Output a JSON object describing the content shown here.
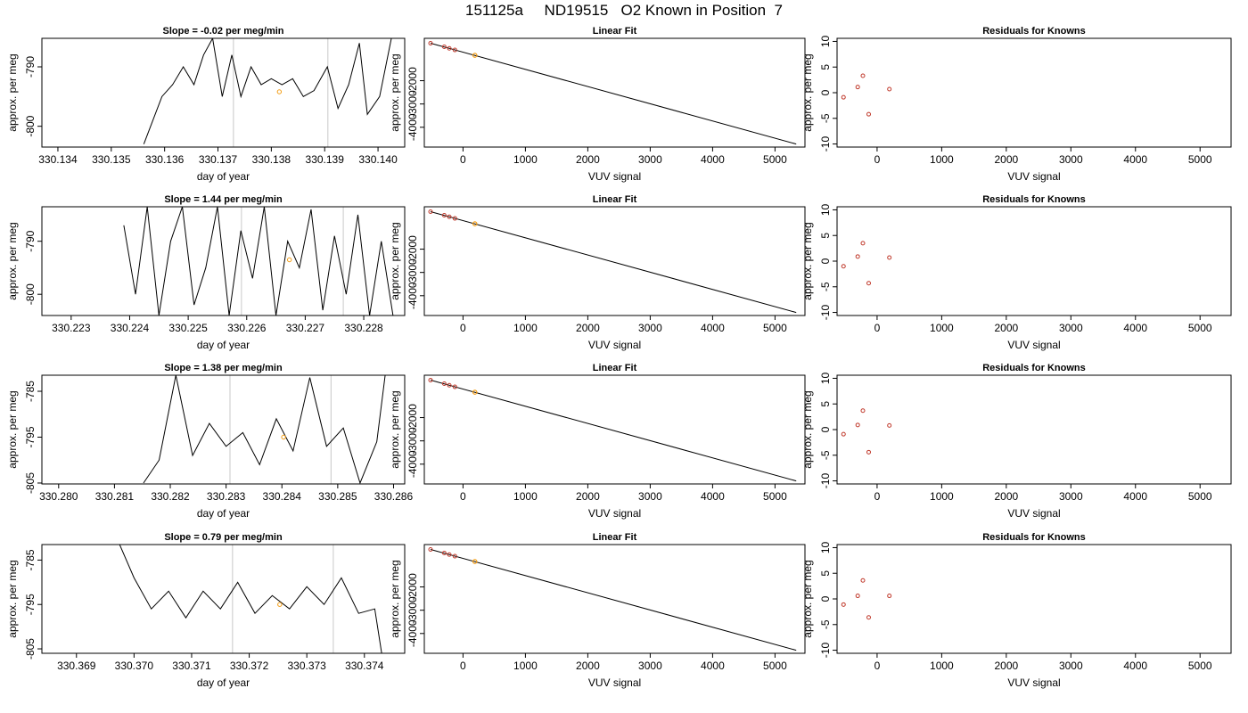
{
  "title": "151125a     ND19515   O2 Known in Position  7",
  "colors": {
    "trace": "#000000",
    "point_known": "#c0392b",
    "point_current": "#f39c12",
    "vline": "#c8c8c8"
  },
  "chart_data": [
    {
      "type": "line",
      "row": 0,
      "col": 0,
      "title": "Slope =  -0.02  per meg/min",
      "xlabel": "day of year",
      "ylabel": "approx. per meg",
      "xlim": [
        330.1337,
        330.1405
      ],
      "ylim": [
        -803.5,
        -785.2
      ],
      "xticks": [
        "330.134",
        "330.135",
        "330.136",
        "330.137",
        "330.138",
        "330.139",
        "330.140"
      ],
      "xtick_values": [
        330.134,
        330.135,
        330.136,
        330.137,
        330.138,
        330.139,
        330.14
      ],
      "yticks": [
        "-790",
        "-800"
      ],
      "ytick_values": [
        -790,
        -800
      ],
      "vlines": [
        330.13729,
        330.13906
      ],
      "highlight_point": {
        "x": 330.13815,
        "y": -794.2
      },
      "series": [
        {
          "x": [
            330.13561,
            330.13595,
            330.13615,
            330.13635,
            330.13655,
            330.13673,
            330.1369,
            330.13708,
            330.13726,
            330.13743,
            330.13762,
            330.13781,
            330.138,
            330.1382,
            330.1384,
            330.1386,
            330.1388,
            330.13905,
            330.13925,
            330.13945,
            330.13965,
            330.1398,
            330.14003,
            330.14025
          ],
          "y": [
            -803,
            -795,
            -793,
            -790,
            -793,
            -788,
            -785.2,
            -795,
            -788,
            -795,
            -790,
            -793,
            -792,
            -793,
            -792,
            -795,
            -794,
            -790,
            -797,
            -793,
            -786,
            -798,
            -795,
            -785.2
          ]
        }
      ]
    },
    {
      "type": "scatter",
      "row": 0,
      "col": 1,
      "title": "Linear Fit",
      "xlabel": "VUV signal",
      "ylabel": "approx. per meg",
      "xlim": [
        -620,
        5480
      ],
      "ylim": [
        -4850,
        -180
      ],
      "xticks": [
        "0",
        "1000",
        "2000",
        "3000",
        "4000",
        "5000"
      ],
      "xtick_values": [
        0,
        1000,
        2000,
        3000,
        4000,
        5000
      ],
      "yticks": [
        "-2000",
        "-3000",
        "-4000"
      ],
      "ytick_values": [
        -2000,
        -3000,
        -4000
      ],
      "fit_line": {
        "x": [
          -520,
          5340
        ],
        "y": [
          -390,
          -4720
        ]
      },
      "points_known": {
        "x": [
          -520,
          -300,
          -220,
          -130
        ],
        "y": [
          -390,
          -545,
          -610,
          -680
        ]
      },
      "point_current": {
        "x": 190,
        "y": -910
      }
    },
    {
      "type": "scatter",
      "row": 0,
      "col": 2,
      "title": "Residuals for Knowns",
      "xlabel": "VUV signal",
      "ylabel": "approx. per meg",
      "xlim": [
        -620,
        5480
      ],
      "ylim": [
        -10.6,
        10.6
      ],
      "xticks": [
        "0",
        "1000",
        "2000",
        "3000",
        "4000",
        "5000"
      ],
      "xtick_values": [
        0,
        1000,
        2000,
        3000,
        4000,
        5000
      ],
      "yticks": [
        "10",
        "5",
        "0",
        "-5",
        "-10"
      ],
      "ytick_values": [
        10,
        5,
        0,
        -5,
        -10
      ],
      "points_known": {
        "x": [
          -520,
          -300,
          -220,
          -130,
          190
        ],
        "y": [
          -0.9,
          1.1,
          3.3,
          -4.2,
          0.7
        ]
      }
    },
    {
      "type": "line",
      "row": 1,
      "col": 0,
      "title": "Slope =  1.44  per meg/min",
      "xlabel": "day of year",
      "ylabel": "approx. per meg",
      "xlim": [
        330.2225,
        330.2287
      ],
      "ylim": [
        -804,
        -783.5
      ],
      "xticks": [
        "330.223",
        "330.224",
        "330.225",
        "330.226",
        "330.227",
        "330.228"
      ],
      "xtick_values": [
        330.223,
        330.224,
        330.225,
        330.226,
        330.227,
        330.228
      ],
      "yticks": [
        "-790",
        "-800"
      ],
      "ytick_values": [
        -790,
        -800
      ],
      "vlines": [
        330.22591,
        330.22765
      ],
      "highlight_point": {
        "x": 330.22673,
        "y": -793.5
      },
      "series": [
        {
          "x": [
            330.2239,
            330.2241,
            330.2243,
            330.2245,
            330.2247,
            330.2249,
            330.2251,
            330.2253,
            330.2255,
            330.2257,
            330.2259,
            330.2261,
            330.2263,
            330.2265,
            330.2267,
            330.2269,
            330.2271,
            330.2273,
            330.2275,
            330.2277,
            330.2279,
            330.2281,
            330.2283,
            330.2285
          ],
          "y": [
            -787,
            -800,
            -783.5,
            -804,
            -790,
            -783.5,
            -802,
            -795,
            -783.5,
            -804,
            -788,
            -797,
            -783.5,
            -804,
            -790,
            -795,
            -784,
            -803,
            -789,
            -800,
            -785,
            -804,
            -790,
            -804
          ]
        }
      ]
    },
    {
      "type": "scatter",
      "row": 1,
      "col": 1,
      "title": "Linear Fit",
      "xlabel": "VUV signal",
      "ylabel": "approx. per meg",
      "xlim": [
        -620,
        5480
      ],
      "ylim": [
        -4850,
        -180
      ],
      "xticks": [
        "0",
        "1000",
        "2000",
        "3000",
        "4000",
        "5000"
      ],
      "xtick_values": [
        0,
        1000,
        2000,
        3000,
        4000,
        5000
      ],
      "yticks": [
        "-2000",
        "-3000",
        "-4000"
      ],
      "ytick_values": [
        -2000,
        -3000,
        -4000
      ],
      "fit_line": {
        "x": [
          -520,
          5340
        ],
        "y": [
          -390,
          -4720
        ]
      },
      "points_known": {
        "x": [
          -520,
          -300,
          -220,
          -130
        ],
        "y": [
          -390,
          -545,
          -610,
          -680
        ]
      },
      "point_current": {
        "x": 190,
        "y": -910
      }
    },
    {
      "type": "scatter",
      "row": 1,
      "col": 2,
      "title": "Residuals for Knowns",
      "xlabel": "VUV signal",
      "ylabel": "approx. per meg",
      "xlim": [
        -620,
        5480
      ],
      "ylim": [
        -10.6,
        10.6
      ],
      "xticks": [
        "0",
        "1000",
        "2000",
        "3000",
        "4000",
        "5000"
      ],
      "xtick_values": [
        0,
        1000,
        2000,
        3000,
        4000,
        5000
      ],
      "yticks": [
        "10",
        "5",
        "0",
        "-5",
        "-10"
      ],
      "ytick_values": [
        10,
        5,
        0,
        -5,
        -10
      ],
      "points_known": {
        "x": [
          -520,
          -300,
          -220,
          -130,
          190
        ],
        "y": [
          -1.0,
          0.9,
          3.5,
          -4.3,
          0.7
        ]
      }
    },
    {
      "type": "line",
      "row": 2,
      "col": 0,
      "title": "Slope =  1.38  per meg/min",
      "xlabel": "day of year",
      "ylabel": "approx. per meg",
      "xlim": [
        330.2797,
        330.2862
      ],
      "ylim": [
        -805.2,
        -781.5
      ],
      "xticks": [
        "330.280",
        "330.281",
        "330.282",
        "330.283",
        "330.284",
        "330.285",
        "330.286"
      ],
      "xtick_values": [
        330.28,
        330.281,
        330.282,
        330.283,
        330.284,
        330.285,
        330.286
      ],
      "yticks": [
        "-785",
        "-795",
        "-805"
      ],
      "ytick_values": [
        -785,
        -795,
        -805
      ],
      "vlines": [
        330.28307,
        330.28488
      ],
      "highlight_point": {
        "x": 330.28403,
        "y": -795
      },
      "series": [
        {
          "x": [
            330.28152,
            330.2818,
            330.2821,
            330.2824,
            330.2827,
            330.283,
            330.2833,
            330.2836,
            330.2839,
            330.2842,
            330.2845,
            330.2848,
            330.2851,
            330.2854,
            330.2857,
            330.28585
          ],
          "y": [
            -805,
            -800,
            -781.5,
            -799,
            -792,
            -797,
            -794,
            -801,
            -791,
            -798,
            -782,
            -797,
            -793,
            -805,
            -796,
            -781.5
          ]
        }
      ]
    },
    {
      "type": "scatter",
      "row": 2,
      "col": 1,
      "title": "Linear Fit",
      "xlabel": "VUV signal",
      "ylabel": "approx. per meg",
      "xlim": [
        -620,
        5480
      ],
      "ylim": [
        -4850,
        -180
      ],
      "xticks": [
        "0",
        "1000",
        "2000",
        "3000",
        "4000",
        "5000"
      ],
      "xtick_values": [
        0,
        1000,
        2000,
        3000,
        4000,
        5000
      ],
      "yticks": [
        "-2000",
        "-3000",
        "-4000"
      ],
      "ytick_values": [
        -2000,
        -3000,
        -4000
      ],
      "fit_line": {
        "x": [
          -520,
          5340
        ],
        "y": [
          -390,
          -4720
        ]
      },
      "points_known": {
        "x": [
          -520,
          -300,
          -220,
          -130
        ],
        "y": [
          -390,
          -545,
          -610,
          -680
        ]
      },
      "point_current": {
        "x": 190,
        "y": -910
      }
    },
    {
      "type": "scatter",
      "row": 2,
      "col": 2,
      "title": "Residuals for Knowns",
      "xlabel": "VUV signal",
      "ylabel": "approx. per meg",
      "xlim": [
        -620,
        5480
      ],
      "ylim": [
        -10.6,
        10.6
      ],
      "xticks": [
        "0",
        "1000",
        "2000",
        "3000",
        "4000",
        "5000"
      ],
      "xtick_values": [
        0,
        1000,
        2000,
        3000,
        4000,
        5000
      ],
      "yticks": [
        "10",
        "5",
        "0",
        "-5",
        "-10"
      ],
      "ytick_values": [
        10,
        5,
        0,
        -5,
        -10
      ],
      "points_known": {
        "x": [
          -520,
          -300,
          -220,
          -130,
          190
        ],
        "y": [
          -0.9,
          0.9,
          3.7,
          -4.4,
          0.8
        ]
      }
    },
    {
      "type": "line",
      "row": 3,
      "col": 0,
      "title": "Slope =  0.79  per meg/min",
      "xlabel": "day of year",
      "ylabel": "approx. per meg",
      "xlim": [
        330.3684,
        330.3747
      ],
      "ylim": [
        -806,
        -781.5
      ],
      "xticks": [
        "330.369",
        "330.370",
        "330.371",
        "330.372",
        "330.373",
        "330.374"
      ],
      "xtick_values": [
        330.369,
        330.37,
        330.371,
        330.372,
        330.373,
        330.374
      ],
      "yticks": [
        "-785",
        "-795",
        "-805"
      ],
      "ytick_values": [
        -785,
        -795,
        -805
      ],
      "vlines": [
        330.37171,
        330.37346
      ],
      "highlight_point": {
        "x": 330.37253,
        "y": -795
      },
      "series": [
        {
          "x": [
            330.36975,
            330.37,
            330.3703,
            330.3706,
            330.3709,
            330.3712,
            330.3715,
            330.3718,
            330.3721,
            330.3724,
            330.3727,
            330.373,
            330.3733,
            330.3736,
            330.3739,
            330.37418,
            330.3743
          ],
          "y": [
            -781.5,
            -789,
            -796,
            -792,
            -798,
            -792,
            -796,
            -790,
            -797,
            -793,
            -796,
            -791,
            -795,
            -789,
            -797,
            -796,
            -806
          ]
        }
      ]
    },
    {
      "type": "scatter",
      "row": 3,
      "col": 1,
      "title": "Linear Fit",
      "xlabel": "VUV signal",
      "ylabel": "approx. per meg",
      "xlim": [
        -620,
        5480
      ],
      "ylim": [
        -4850,
        -180
      ],
      "xticks": [
        "0",
        "1000",
        "2000",
        "3000",
        "4000",
        "5000"
      ],
      "xtick_values": [
        0,
        1000,
        2000,
        3000,
        4000,
        5000
      ],
      "yticks": [
        "-2000",
        "-3000",
        "-4000"
      ],
      "ytick_values": [
        -2000,
        -3000,
        -4000
      ],
      "fit_line": {
        "x": [
          -520,
          5340
        ],
        "y": [
          -390,
          -4720
        ]
      },
      "points_known": {
        "x": [
          -520,
          -300,
          -220,
          -130
        ],
        "y": [
          -390,
          -545,
          -610,
          -680
        ]
      },
      "point_current": {
        "x": 190,
        "y": -910
      }
    },
    {
      "type": "scatter",
      "row": 3,
      "col": 2,
      "title": "Residuals for Knowns",
      "xlabel": "VUV signal",
      "ylabel": "approx. per meg",
      "xlim": [
        -620,
        5480
      ],
      "ylim": [
        -10.6,
        10.6
      ],
      "xticks": [
        "0",
        "1000",
        "2000",
        "3000",
        "4000",
        "5000"
      ],
      "xtick_values": [
        0,
        1000,
        2000,
        3000,
        4000,
        5000
      ],
      "yticks": [
        "10",
        "5",
        "0",
        "-5",
        "-10"
      ],
      "ytick_values": [
        10,
        5,
        0,
        -5,
        -10
      ],
      "points_known": {
        "x": [
          -520,
          -300,
          -220,
          -130,
          190
        ],
        "y": [
          -1.1,
          0.6,
          3.6,
          -3.6,
          0.6
        ]
      }
    }
  ]
}
